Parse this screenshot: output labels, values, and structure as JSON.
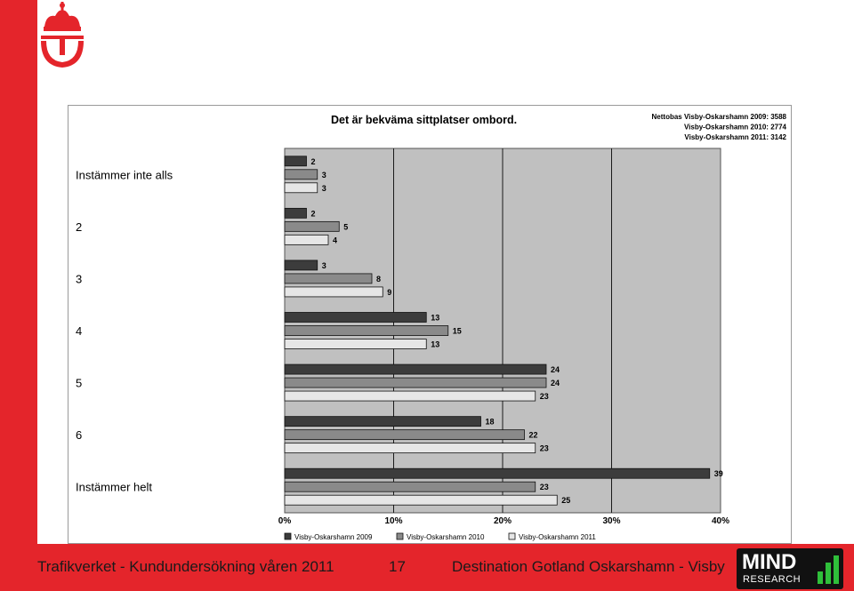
{
  "colors": {
    "brand_red": "#e4252b",
    "plot_bg": "#c0c0c0",
    "series_2009": "#3c3c3c",
    "series_2010": "#8a8a8a",
    "series_2011": "#e6e6e6"
  },
  "logo": {
    "name": "trafikverket-crown-logo"
  },
  "mind_logo": {
    "word": "MIND",
    "sub": "RESEARCH",
    "icon": "bar-chart-icon"
  },
  "footer": {
    "left": "Trafikverket - Kundundersökning våren 2011",
    "page": "17",
    "right": "Destination Gotland Oskarshamn - Visby"
  },
  "chart_data": {
    "type": "bar",
    "orientation": "horizontal",
    "title": "Det är bekväma sittplatser ombord.",
    "nettobas": [
      "Nettobas  Visby-Oskarshamn 2009: 3588",
      "Visby-Oskarshamn 2010: 2774",
      "Visby-Oskarshamn 2011: 3142"
    ],
    "categories": [
      "Instämmer inte alls",
      "2",
      "3",
      "4",
      "5",
      "6",
      "Instämmer helt"
    ],
    "series": [
      {
        "name": "Visby-Oskarshamn 2009",
        "values": [
          2,
          2,
          3,
          13,
          24,
          18,
          39
        ]
      },
      {
        "name": "Visby-Oskarshamn 2010",
        "values": [
          3,
          5,
          8,
          15,
          24,
          22,
          23
        ]
      },
      {
        "name": "Visby-Oskarshamn 2011",
        "values": [
          3,
          4,
          9,
          13,
          23,
          23,
          25
        ]
      }
    ],
    "xlim": [
      0,
      40
    ],
    "xticks": [
      0,
      10,
      20,
      30,
      40
    ],
    "xtick_labels": [
      "0%",
      "10%",
      "20%",
      "30%",
      "40%"
    ],
    "grid": true,
    "legend_position": "bottom"
  }
}
